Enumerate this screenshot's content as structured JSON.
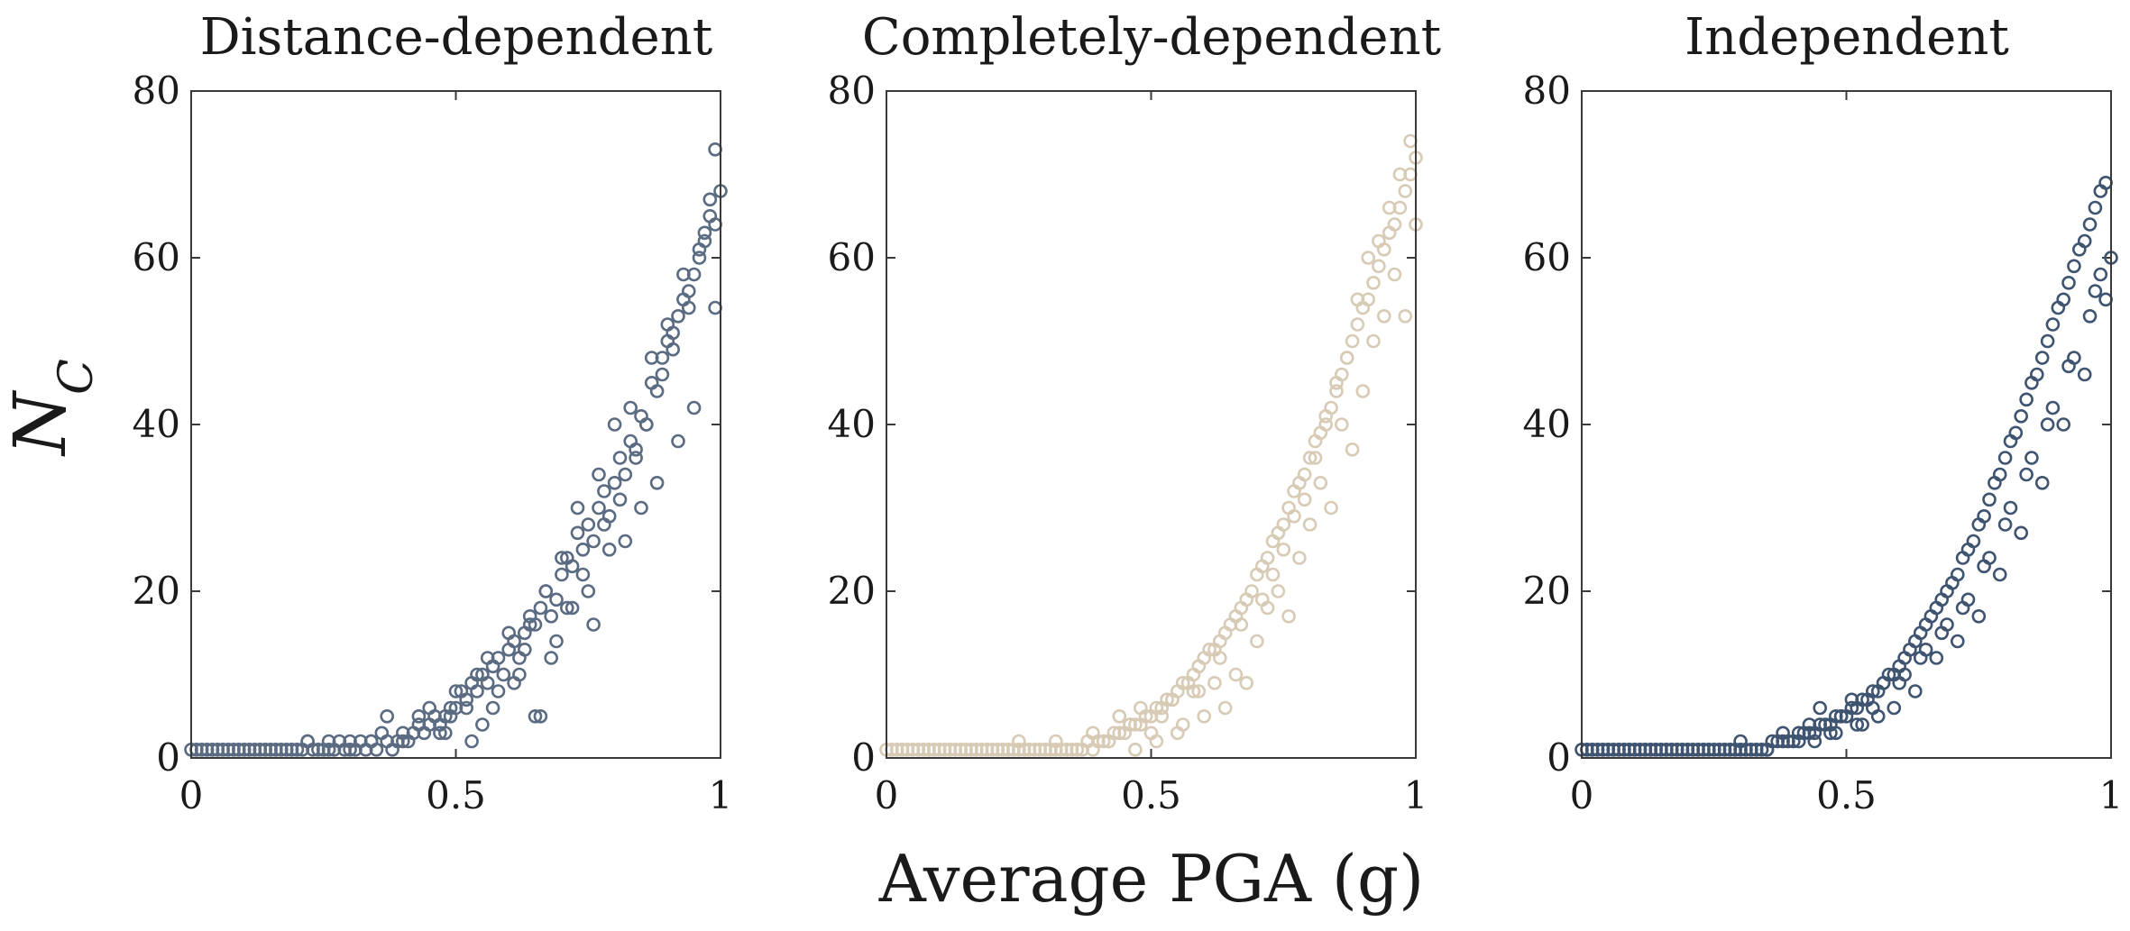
{
  "chart_data": [
    {
      "type": "scatter",
      "title": "Distance-dependent",
      "xlim": [
        0,
        1
      ],
      "ylim": [
        0,
        80
      ],
      "xticks": [
        "0",
        "0.5",
        "1"
      ],
      "yticks": [
        "0",
        "20",
        "40",
        "60",
        "80"
      ],
      "marker_color": "#5b6b82",
      "series": [
        {
          "name": "Distance-dependent",
          "x": [
            0.0,
            0.01,
            0.02,
            0.03,
            0.04,
            0.05,
            0.06,
            0.07,
            0.08,
            0.09,
            0.1,
            0.11,
            0.12,
            0.13,
            0.14,
            0.15,
            0.16,
            0.17,
            0.18,
            0.19,
            0.2,
            0.21,
            0.22,
            0.23,
            0.24,
            0.25,
            0.26,
            0.27,
            0.28,
            0.29,
            0.3,
            0.31,
            0.32,
            0.33,
            0.34,
            0.35,
            0.36,
            0.37,
            0.38,
            0.39,
            0.4,
            0.41,
            0.42,
            0.43,
            0.44,
            0.45,
            0.46,
            0.47,
            0.48,
            0.49,
            0.5,
            0.51,
            0.52,
            0.53,
            0.54,
            0.55,
            0.56,
            0.57,
            0.58,
            0.59,
            0.6,
            0.61,
            0.62,
            0.63,
            0.64,
            0.65,
            0.66,
            0.67,
            0.68,
            0.69,
            0.7,
            0.71,
            0.72,
            0.73,
            0.74,
            0.75,
            0.76,
            0.77,
            0.78,
            0.79,
            0.8,
            0.81,
            0.82,
            0.83,
            0.84,
            0.85,
            0.86,
            0.87,
            0.88,
            0.89,
            0.9,
            0.91,
            0.92,
            0.93,
            0.94,
            0.95,
            0.96,
            0.97,
            0.98,
            0.99,
            1.0,
            0.22,
            0.26,
            0.3,
            0.34,
            0.37,
            0.4,
            0.43,
            0.45,
            0.47,
            0.49,
            0.5,
            0.52,
            0.54,
            0.55,
            0.56,
            0.58,
            0.6,
            0.62,
            0.64,
            0.65,
            0.67,
            0.68,
            0.7,
            0.72,
            0.73,
            0.75,
            0.77,
            0.78,
            0.8,
            0.82,
            0.83,
            0.85,
            0.87,
            0.88,
            0.9,
            0.92,
            0.93,
            0.95,
            0.97,
            0.99,
            0.48,
            0.53,
            0.57,
            0.61,
            0.63,
            0.66,
            0.69,
            0.71,
            0.74,
            0.76,
            0.79,
            0.81,
            0.84,
            0.86,
            0.89,
            0.91,
            0.94,
            0.96,
            0.98,
            0.99
          ],
          "y": [
            1,
            1,
            1,
            1,
            1,
            1,
            1,
            1,
            1,
            1,
            1,
            1,
            1,
            1,
            1,
            1,
            1,
            1,
            1,
            1,
            1,
            1,
            2,
            1,
            1,
            1,
            1,
            1,
            2,
            1,
            1,
            1,
            2,
            1,
            2,
            1,
            3,
            2,
            1,
            2,
            3,
            2,
            3,
            4,
            3,
            4,
            5,
            4,
            5,
            6,
            6,
            8,
            7,
            9,
            8,
            10,
            9,
            11,
            12,
            10,
            13,
            14,
            12,
            15,
            17,
            16,
            18,
            20,
            17,
            19,
            22,
            24,
            23,
            27,
            25,
            28,
            26,
            30,
            32,
            29,
            33,
            36,
            34,
            38,
            37,
            41,
            40,
            45,
            44,
            48,
            50,
            49,
            53,
            55,
            54,
            58,
            60,
            62,
            65,
            64,
            68,
            2,
            2,
            2,
            2,
            5,
            2,
            5,
            6,
            3,
            5,
            8,
            6,
            10,
            4,
            12,
            8,
            15,
            10,
            16,
            5,
            20,
            12,
            24,
            18,
            30,
            20,
            34,
            28,
            40,
            26,
            42,
            30,
            48,
            33,
            52,
            38,
            58,
            42,
            63,
            54,
            3,
            2,
            6,
            9,
            13,
            5,
            14,
            18,
            22,
            16,
            25,
            31,
            36,
            40,
            46,
            51,
            56,
            61,
            67,
            73
          ]
        }
      ]
    },
    {
      "type": "scatter",
      "title": "Completely-dependent",
      "xlim": [
        0,
        1
      ],
      "ylim": [
        0,
        80
      ],
      "xticks": [
        "0",
        "0.5",
        "1"
      ],
      "yticks": [
        "0",
        "20",
        "40",
        "60",
        "80"
      ],
      "marker_color": "#d8cbb6",
      "series": [
        {
          "name": "Completely-dependent",
          "x": [
            0.0,
            0.01,
            0.02,
            0.03,
            0.04,
            0.05,
            0.06,
            0.07,
            0.08,
            0.09,
            0.1,
            0.11,
            0.12,
            0.13,
            0.14,
            0.15,
            0.16,
            0.17,
            0.18,
            0.19,
            0.2,
            0.21,
            0.22,
            0.23,
            0.24,
            0.25,
            0.26,
            0.27,
            0.28,
            0.29,
            0.3,
            0.31,
            0.32,
            0.33,
            0.34,
            0.35,
            0.36,
            0.37,
            0.38,
            0.39,
            0.4,
            0.41,
            0.42,
            0.43,
            0.44,
            0.45,
            0.46,
            0.47,
            0.48,
            0.49,
            0.5,
            0.51,
            0.52,
            0.53,
            0.54,
            0.55,
            0.56,
            0.57,
            0.58,
            0.59,
            0.6,
            0.61,
            0.62,
            0.63,
            0.64,
            0.65,
            0.66,
            0.67,
            0.68,
            0.69,
            0.7,
            0.71,
            0.72,
            0.73,
            0.74,
            0.75,
            0.76,
            0.77,
            0.78,
            0.79,
            0.8,
            0.81,
            0.82,
            0.83,
            0.84,
            0.85,
            0.86,
            0.87,
            0.88,
            0.89,
            0.9,
            0.91,
            0.92,
            0.93,
            0.94,
            0.95,
            0.96,
            0.97,
            0.98,
            0.99,
            1.0,
            0.25,
            0.32,
            0.36,
            0.39,
            0.42,
            0.44,
            0.46,
            0.48,
            0.5,
            0.52,
            0.54,
            0.56,
            0.58,
            0.6,
            0.62,
            0.64,
            0.66,
            0.68,
            0.7,
            0.72,
            0.74,
            0.76,
            0.78,
            0.8,
            0.82,
            0.84,
            0.86,
            0.88,
            0.9,
            0.92,
            0.94,
            0.96,
            0.98,
            1.0,
            0.47,
            0.51,
            0.55,
            0.59,
            0.63,
            0.67,
            0.71,
            0.73,
            0.75,
            0.77,
            0.79,
            0.81,
            0.83,
            0.85,
            0.87,
            0.89,
            0.91,
            0.93,
            0.95,
            0.97,
            0.99
          ],
          "y": [
            1,
            1,
            1,
            1,
            1,
            1,
            1,
            1,
            1,
            1,
            1,
            1,
            1,
            1,
            1,
            1,
            1,
            1,
            1,
            1,
            1,
            1,
            1,
            1,
            1,
            1,
            1,
            1,
            1,
            1,
            1,
            1,
            1,
            1,
            1,
            1,
            1,
            1,
            2,
            1,
            2,
            2,
            2,
            3,
            3,
            3,
            4,
            4,
            4,
            5,
            5,
            6,
            6,
            7,
            7,
            8,
            9,
            9,
            10,
            11,
            12,
            13,
            13,
            14,
            15,
            16,
            17,
            18,
            19,
            20,
            22,
            23,
            24,
            26,
            27,
            28,
            30,
            32,
            33,
            34,
            36,
            38,
            39,
            41,
            42,
            44,
            46,
            48,
            50,
            52,
            54,
            55,
            57,
            59,
            61,
            63,
            64,
            66,
            68,
            70,
            72,
            2,
            2,
            1,
            3,
            2,
            5,
            4,
            6,
            3,
            5,
            7,
            4,
            8,
            5,
            9,
            6,
            10,
            9,
            14,
            18,
            20,
            17,
            24,
            28,
            33,
            30,
            40,
            37,
            44,
            50,
            53,
            58,
            53,
            64,
            1,
            2,
            3,
            8,
            12,
            16,
            19,
            22,
            25,
            29,
            31,
            36,
            40,
            45,
            48,
            55,
            60,
            62,
            66,
            70,
            74
          ]
        }
      ]
    },
    {
      "type": "scatter",
      "title": "Independent",
      "xlim": [
        0,
        1
      ],
      "ylim": [
        0,
        80
      ],
      "xticks": [
        "0",
        "0.5",
        "1"
      ],
      "yticks": [
        "0",
        "20",
        "40",
        "60",
        "80"
      ],
      "marker_color": "#3f5470",
      "series": [
        {
          "name": "Independent",
          "x": [
            0.0,
            0.01,
            0.02,
            0.03,
            0.04,
            0.05,
            0.06,
            0.07,
            0.08,
            0.09,
            0.1,
            0.11,
            0.12,
            0.13,
            0.14,
            0.15,
            0.16,
            0.17,
            0.18,
            0.19,
            0.2,
            0.21,
            0.22,
            0.23,
            0.24,
            0.25,
            0.26,
            0.27,
            0.28,
            0.29,
            0.3,
            0.31,
            0.32,
            0.33,
            0.34,
            0.35,
            0.36,
            0.37,
            0.38,
            0.39,
            0.4,
            0.41,
            0.42,
            0.43,
            0.44,
            0.45,
            0.46,
            0.47,
            0.48,
            0.49,
            0.5,
            0.51,
            0.52,
            0.53,
            0.54,
            0.55,
            0.56,
            0.57,
            0.58,
            0.59,
            0.6,
            0.61,
            0.62,
            0.63,
            0.64,
            0.65,
            0.66,
            0.67,
            0.68,
            0.69,
            0.7,
            0.71,
            0.72,
            0.73,
            0.74,
            0.75,
            0.76,
            0.77,
            0.78,
            0.79,
            0.8,
            0.81,
            0.82,
            0.83,
            0.84,
            0.85,
            0.86,
            0.87,
            0.88,
            0.89,
            0.9,
            0.91,
            0.92,
            0.93,
            0.94,
            0.95,
            0.96,
            0.97,
            0.98,
            0.99,
            1.0,
            0.3,
            0.35,
            0.38,
            0.41,
            0.43,
            0.45,
            0.47,
            0.49,
            0.51,
            0.53,
            0.55,
            0.57,
            0.59,
            0.61,
            0.63,
            0.65,
            0.67,
            0.69,
            0.71,
            0.73,
            0.75,
            0.77,
            0.79,
            0.81,
            0.83,
            0.85,
            0.87,
            0.89,
            0.91,
            0.93,
            0.95,
            0.97,
            0.99,
            0.44,
            0.48,
            0.52,
            0.56,
            0.6,
            0.64,
            0.68,
            0.72,
            0.76,
            0.8,
            0.84,
            0.88,
            0.92,
            0.96,
            0.98
          ],
          "y": [
            1,
            1,
            1,
            1,
            1,
            1,
            1,
            1,
            1,
            1,
            1,
            1,
            1,
            1,
            1,
            1,
            1,
            1,
            1,
            1,
            1,
            1,
            1,
            1,
            1,
            1,
            1,
            1,
            1,
            1,
            1,
            1,
            1,
            1,
            1,
            1,
            2,
            2,
            2,
            2,
            2,
            3,
            3,
            3,
            3,
            4,
            4,
            4,
            5,
            5,
            5,
            6,
            6,
            7,
            7,
            8,
            8,
            9,
            10,
            10,
            11,
            12,
            13,
            14,
            15,
            16,
            17,
            18,
            19,
            20,
            21,
            22,
            24,
            25,
            26,
            28,
            29,
            31,
            33,
            34,
            36,
            38,
            39,
            41,
            43,
            45,
            46,
            48,
            50,
            52,
            54,
            55,
            57,
            59,
            61,
            62,
            64,
            66,
            68,
            69,
            60,
            2,
            1,
            3,
            2,
            4,
            6,
            3,
            5,
            7,
            4,
            6,
            9,
            6,
            10,
            8,
            13,
            12,
            16,
            14,
            19,
            17,
            24,
            22,
            30,
            27,
            36,
            33,
            42,
            40,
            48,
            46,
            56,
            55,
            2,
            3,
            4,
            5,
            9,
            12,
            15,
            18,
            23,
            28,
            34,
            40,
            47,
            53,
            58
          ]
        }
      ]
    }
  ],
  "figure": {
    "ylabel_main": "N",
    "ylabel_sub": "C",
    "xlabel": "Average PGA (g)"
  }
}
